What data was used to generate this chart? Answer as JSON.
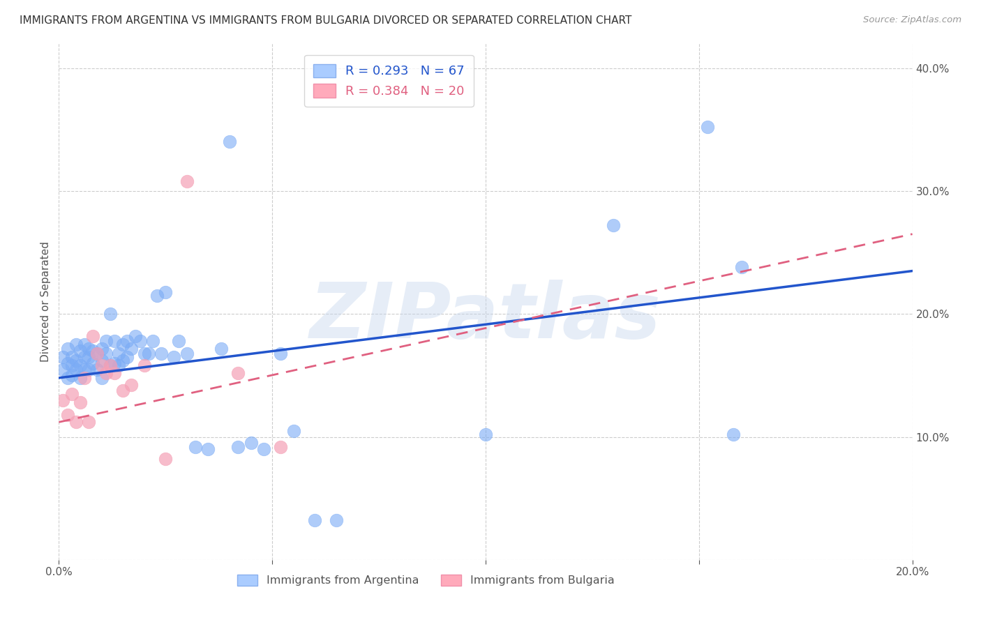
{
  "title": "IMMIGRANTS FROM ARGENTINA VS IMMIGRANTS FROM BULGARIA DIVORCED OR SEPARATED CORRELATION CHART",
  "source": "Source: ZipAtlas.com",
  "ylabel": "Divorced or Separated",
  "xlim": [
    0.0,
    0.2
  ],
  "ylim": [
    0.0,
    0.42
  ],
  "argentina_color": "#7aabf5",
  "bulgaria_color": "#f5a0b5",
  "argentina_line_color": "#2255cc",
  "bulgaria_line_color": "#e06080",
  "argentina_R": 0.293,
  "argentina_N": 67,
  "bulgaria_R": 0.384,
  "bulgaria_N": 20,
  "argentina_x": [
    0.001,
    0.001,
    0.002,
    0.002,
    0.002,
    0.003,
    0.003,
    0.003,
    0.004,
    0.004,
    0.004,
    0.005,
    0.005,
    0.005,
    0.006,
    0.006,
    0.006,
    0.007,
    0.007,
    0.007,
    0.008,
    0.008,
    0.009,
    0.009,
    0.01,
    0.01,
    0.01,
    0.011,
    0.011,
    0.012,
    0.012,
    0.013,
    0.013,
    0.014,
    0.014,
    0.015,
    0.015,
    0.016,
    0.016,
    0.017,
    0.018,
    0.019,
    0.02,
    0.021,
    0.022,
    0.023,
    0.024,
    0.025,
    0.027,
    0.028,
    0.03,
    0.032,
    0.035,
    0.038,
    0.04,
    0.042,
    0.045,
    0.048,
    0.052,
    0.055,
    0.06,
    0.065,
    0.1,
    0.13,
    0.152,
    0.158,
    0.16
  ],
  "argentina_y": [
    0.155,
    0.165,
    0.148,
    0.16,
    0.172,
    0.15,
    0.165,
    0.158,
    0.162,
    0.175,
    0.155,
    0.148,
    0.17,
    0.158,
    0.165,
    0.155,
    0.175,
    0.165,
    0.172,
    0.155,
    0.17,
    0.16,
    0.168,
    0.155,
    0.162,
    0.172,
    0.148,
    0.168,
    0.178,
    0.158,
    0.2,
    0.178,
    0.16,
    0.168,
    0.158,
    0.175,
    0.162,
    0.178,
    0.165,
    0.172,
    0.182,
    0.178,
    0.168,
    0.168,
    0.178,
    0.215,
    0.168,
    0.218,
    0.165,
    0.178,
    0.168,
    0.092,
    0.09,
    0.172,
    0.34,
    0.092,
    0.095,
    0.09,
    0.168,
    0.105,
    0.032,
    0.032,
    0.102,
    0.272,
    0.352,
    0.102,
    0.238
  ],
  "bulgaria_x": [
    0.001,
    0.002,
    0.003,
    0.004,
    0.005,
    0.006,
    0.007,
    0.008,
    0.009,
    0.01,
    0.011,
    0.012,
    0.013,
    0.015,
    0.017,
    0.02,
    0.025,
    0.03,
    0.042,
    0.052
  ],
  "bulgaria_y": [
    0.13,
    0.118,
    0.135,
    0.112,
    0.128,
    0.148,
    0.112,
    0.182,
    0.168,
    0.158,
    0.152,
    0.158,
    0.152,
    0.138,
    0.142,
    0.158,
    0.082,
    0.308,
    0.152,
    0.092
  ],
  "arg_line_x0": 0.0,
  "arg_line_y0": 0.148,
  "arg_line_x1": 0.2,
  "arg_line_y1": 0.235,
  "bul_line_x0": 0.0,
  "bul_line_y0": 0.112,
  "bul_line_x1": 0.2,
  "bul_line_y1": 0.265,
  "watermark": "ZIPatlas",
  "legend_box_color_argentina": "#aaccff",
  "legend_box_color_bulgaria": "#ffaabb",
  "background_color": "#ffffff",
  "grid_color": "#cccccc"
}
